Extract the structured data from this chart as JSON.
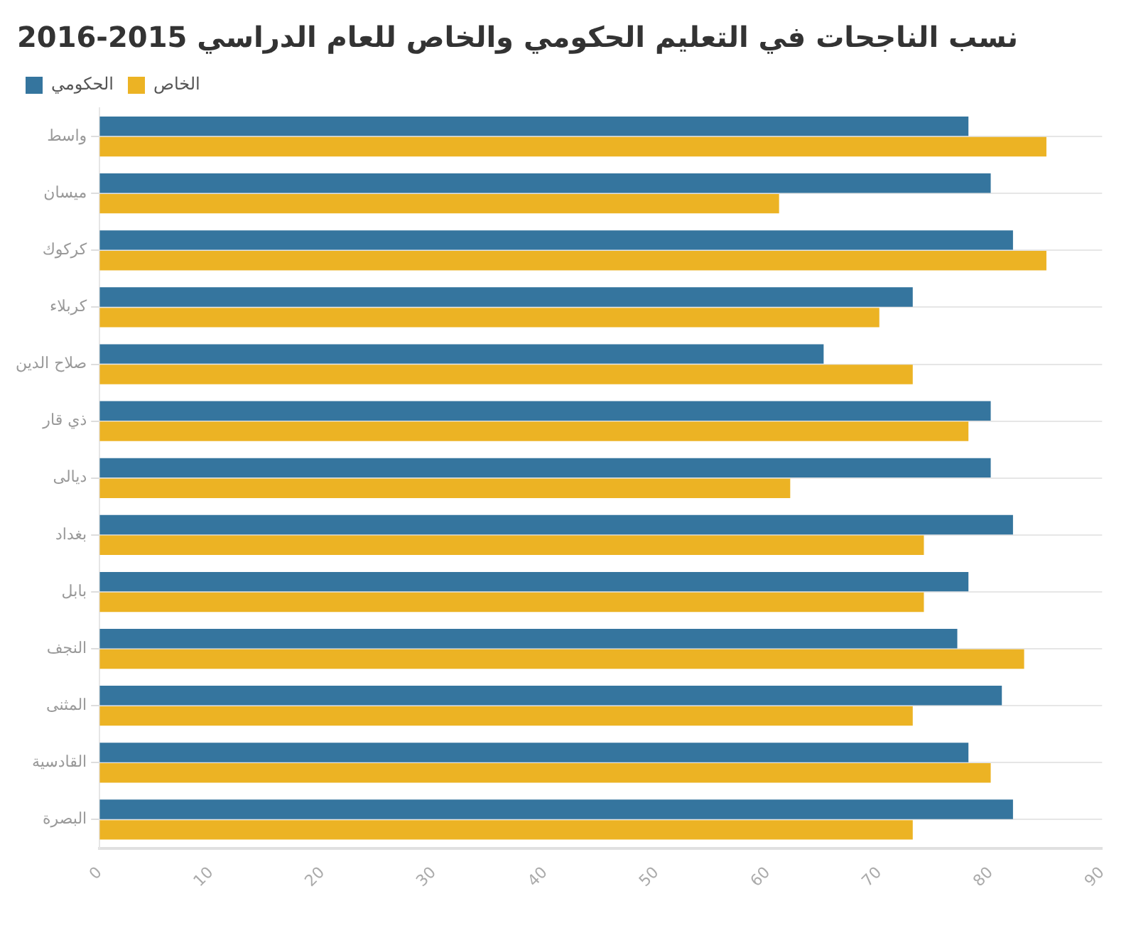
{
  "chart_data": {
    "type": "bar",
    "orientation": "horizontal",
    "title": "نسب الناجحات في التعليم الحكومي والخاص للعام الدراسي 2015-2016",
    "categories": [
      "واسط",
      "ميسان",
      "كركوك",
      "كربلاء",
      "صلاح الدين",
      "ذي قار",
      "ديالى",
      "بغداد",
      "بابل",
      "النجف",
      "المثنى",
      "القادسية",
      "البصرة"
    ],
    "series": [
      {
        "name": "الحكومي",
        "color": "#35759e",
        "values": [
          78,
          80,
          82,
          73,
          65,
          80,
          80,
          82,
          78,
          77,
          81,
          78,
          82
        ]
      },
      {
        "name": "الخاص",
        "color": "#ecb324",
        "values": [
          85,
          61,
          85,
          70,
          73,
          78,
          62,
          74,
          74,
          83,
          73,
          80,
          73
        ]
      }
    ],
    "xlim": [
      0,
      90
    ],
    "xticks": [
      0,
      10,
      20,
      30,
      40,
      50,
      60,
      70,
      80,
      90
    ],
    "grid": "y",
    "legend": "top left"
  }
}
